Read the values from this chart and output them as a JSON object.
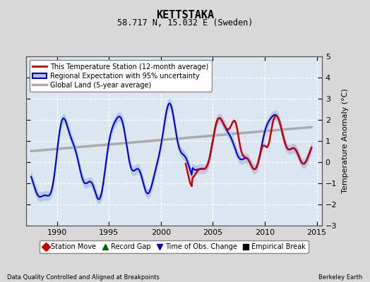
{
  "title": "KETTSTAKA",
  "subtitle": "58.717 N, 15.032 E (Sweden)",
  "ylabel": "Temperature Anomaly (°C)",
  "xlabel_bottom_left": "Data Quality Controlled and Aligned at Breakpoints",
  "xlabel_bottom_right": "Berkeley Earth",
  "ylim": [
    -3,
    5
  ],
  "xlim": [
    1987.0,
    2015.5
  ],
  "xticks": [
    1990,
    1995,
    2000,
    2005,
    2010,
    2015
  ],
  "yticks": [
    -3,
    -2,
    -1,
    0,
    1,
    2,
    3,
    4,
    5
  ],
  "bg_color": "#d8d8d8",
  "plot_bg_color": "#dce6f0",
  "grid_color": "#ffffff",
  "red_line_color": "#cc0000",
  "blue_line_color": "#0000cc",
  "blue_fill_color": "#b0c4e8",
  "gray_line_color": "#aaaaaa",
  "legend_items": [
    {
      "label": "This Temperature Station (12-month average)",
      "color": "#cc0000",
      "lw": 2.0
    },
    {
      "label": "Regional Expectation with 95% uncertainty",
      "color": "#0000cc",
      "lw": 2.0
    },
    {
      "label": "Global Land (5-year average)",
      "color": "#aaaaaa",
      "lw": 2.5
    }
  ],
  "bottom_legend_items": [
    {
      "label": "Station Move",
      "color": "#cc0000",
      "marker": "D"
    },
    {
      "label": "Record Gap",
      "color": "#006600",
      "marker": "^"
    },
    {
      "label": "Time of Obs. Change",
      "color": "#0000cc",
      "marker": "v"
    },
    {
      "label": "Empirical Break",
      "color": "#000000",
      "marker": "s"
    }
  ]
}
